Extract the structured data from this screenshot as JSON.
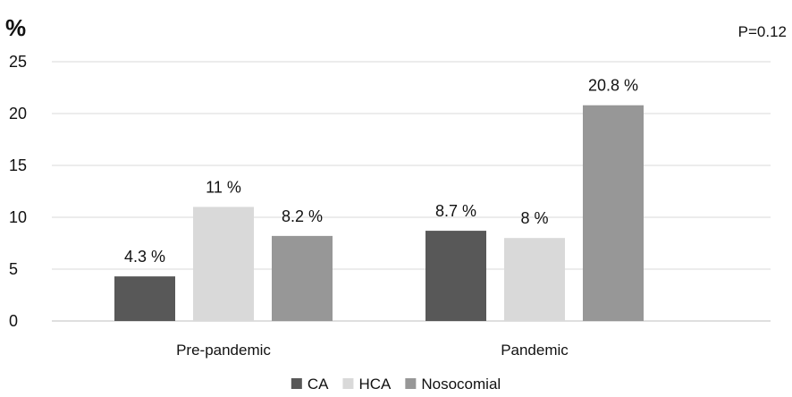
{
  "chart_data": {
    "type": "bar",
    "title": "",
    "ylabel": "%",
    "xlabel": "",
    "annotation": "P=0.12",
    "ylim": [
      0,
      25
    ],
    "yticks": [
      0,
      5,
      10,
      15,
      20,
      25
    ],
    "grid": true,
    "legend_position": "bottom",
    "categories": [
      "Pre-pandemic",
      "Pandemic"
    ],
    "series": [
      {
        "name": "CA",
        "color": "#585858",
        "values": [
          4.3,
          8.7
        ],
        "labels": [
          "4.3 %",
          "8.7 %"
        ]
      },
      {
        "name": "HCA",
        "color": "#d9d9d9",
        "values": [
          11,
          8
        ],
        "labels": [
          "11 %",
          "8 %"
        ]
      },
      {
        "name": "Nosocomial",
        "color": "#979797",
        "values": [
          8.2,
          20.8
        ],
        "labels": [
          "8.2 %",
          "20.8 %"
        ]
      }
    ]
  }
}
